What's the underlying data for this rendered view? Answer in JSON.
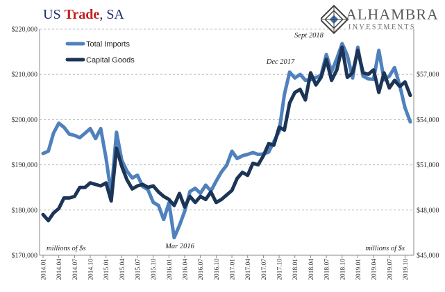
{
  "header": {
    "title_part1": "US ",
    "title_accent": "Trade",
    "title_part2": ", SA",
    "logo_name": "ALHAMBRA",
    "logo_sub": "INVESTMENTS"
  },
  "chart_data": {
    "type": "line",
    "x": [
      "2014.01",
      "2014.02",
      "2014.03",
      "2014.04",
      "2014.05",
      "2014.06",
      "2014.07",
      "2014.08",
      "2014.09",
      "2014.10",
      "2014.11",
      "2014.12",
      "2015.01",
      "2015.02",
      "2015.03",
      "2015.04",
      "2015.05",
      "2015.06",
      "2015.07",
      "2015.08",
      "2015.09",
      "2015.10",
      "2015.11",
      "2015.12",
      "2016.01",
      "2016.02",
      "2016.03",
      "2016.04",
      "2016.05",
      "2016.06",
      "2016.07",
      "2016.08",
      "2016.09",
      "2016.10",
      "2016.11",
      "2016.12",
      "2017.01",
      "2017.02",
      "2017.03",
      "2017.04",
      "2017.05",
      "2017.06",
      "2017.07",
      "2017.08",
      "2017.09",
      "2017.10",
      "2017.11",
      "2017.12",
      "2018.01",
      "2018.02",
      "2018.03",
      "2018.04",
      "2018.05",
      "2018.06",
      "2018.07",
      "2018.08",
      "2018.09",
      "2018.10",
      "2018.11",
      "2018.12",
      "2019.01",
      "2019.02",
      "2019.03",
      "2019.04",
      "2019.05",
      "2019.06",
      "2019.07",
      "2019.08",
      "2019.09",
      "2019.10",
      "2019.11"
    ],
    "x_tick_labels": [
      "2014.01",
      "2014.04",
      "2014.07",
      "2014.10",
      "2015.01",
      "2015.04",
      "2015.07",
      "2015.10",
      "2016.01",
      "2016.04",
      "2016.07",
      "2016.10",
      "2017.01",
      "2017.04",
      "2017.07",
      "2017.10",
      "2018.01",
      "2018.04",
      "2018.07",
      "2018.10",
      "2019.01",
      "2019.04",
      "2019.07",
      "2019.10"
    ],
    "series": [
      {
        "name": "Total Imports",
        "axis": "left",
        "color": "#4f81bd",
        "values": [
          192500,
          193000,
          197000,
          199200,
          198300,
          196800,
          196500,
          196000,
          197000,
          198000,
          195800,
          198000,
          191500,
          183600,
          197200,
          191000,
          188600,
          187100,
          187700,
          185200,
          184500,
          181700,
          181000,
          177900,
          181600,
          173900,
          176600,
          179700,
          184100,
          184800,
          183700,
          185500,
          184200,
          186400,
          188400,
          189900,
          193000,
          191400,
          192000,
          192300,
          192700,
          192300,
          192400,
          192800,
          195100,
          197400,
          205500,
          210500,
          209200,
          210000,
          208700,
          208800,
          209300,
          209800,
          214400,
          210600,
          213500,
          216800,
          214200,
          209200,
          216000,
          209600,
          209000,
          208900,
          215300,
          208800,
          209600,
          211500,
          207500,
          202600,
          199500
        ]
      },
      {
        "name": "Capital Goods",
        "axis": "right",
        "color": "#1c3557",
        "values": [
          47700,
          47300,
          47800,
          48100,
          48800,
          48800,
          48900,
          49500,
          49500,
          49800,
          49700,
          49600,
          49800,
          48600,
          52100,
          50900,
          50000,
          49400,
          49600,
          49700,
          49500,
          49600,
          49200,
          48900,
          48700,
          48300,
          49100,
          48200,
          48900,
          48500,
          48900,
          48700,
          49200,
          48500,
          48700,
          49000,
          49300,
          50100,
          50500,
          50300,
          51100,
          51000,
          51600,
          52400,
          52300,
          53500,
          53300,
          55100,
          55800,
          56000,
          55300,
          57100,
          56300,
          56800,
          58000,
          56600,
          57300,
          58800,
          56800,
          57100,
          58600,
          57100,
          57000,
          57300,
          55800,
          57100,
          56100,
          56600,
          56200,
          56500,
          55600
        ]
      }
    ],
    "left_axis": {
      "min": 170000,
      "max": 220000,
      "ticks": [
        170000,
        180000,
        190000,
        200000,
        210000,
        220000
      ],
      "tick_labels": [
        "$170,000",
        "$180,000",
        "$190,000",
        "$200,000",
        "$210,000",
        "$220,000"
      ],
      "unit_label": "millions of $s"
    },
    "right_axis": {
      "min": 45000,
      "max": 60000,
      "ticks": [
        45000,
        48000,
        51000,
        54000,
        57000
      ],
      "tick_labels": [
        "$45,000",
        "$48,000",
        "$51,000",
        "$54,000",
        "$57,000"
      ],
      "unit_label": "millions of $s"
    },
    "grid": true,
    "legend_placement": "top-left",
    "annotations": [
      {
        "text": "Sept 2018",
        "x": "2018.09"
      },
      {
        "text": "Dec 2017",
        "x": "2017.12"
      },
      {
        "text": "Mar 2016",
        "x": "2016.03"
      }
    ]
  }
}
